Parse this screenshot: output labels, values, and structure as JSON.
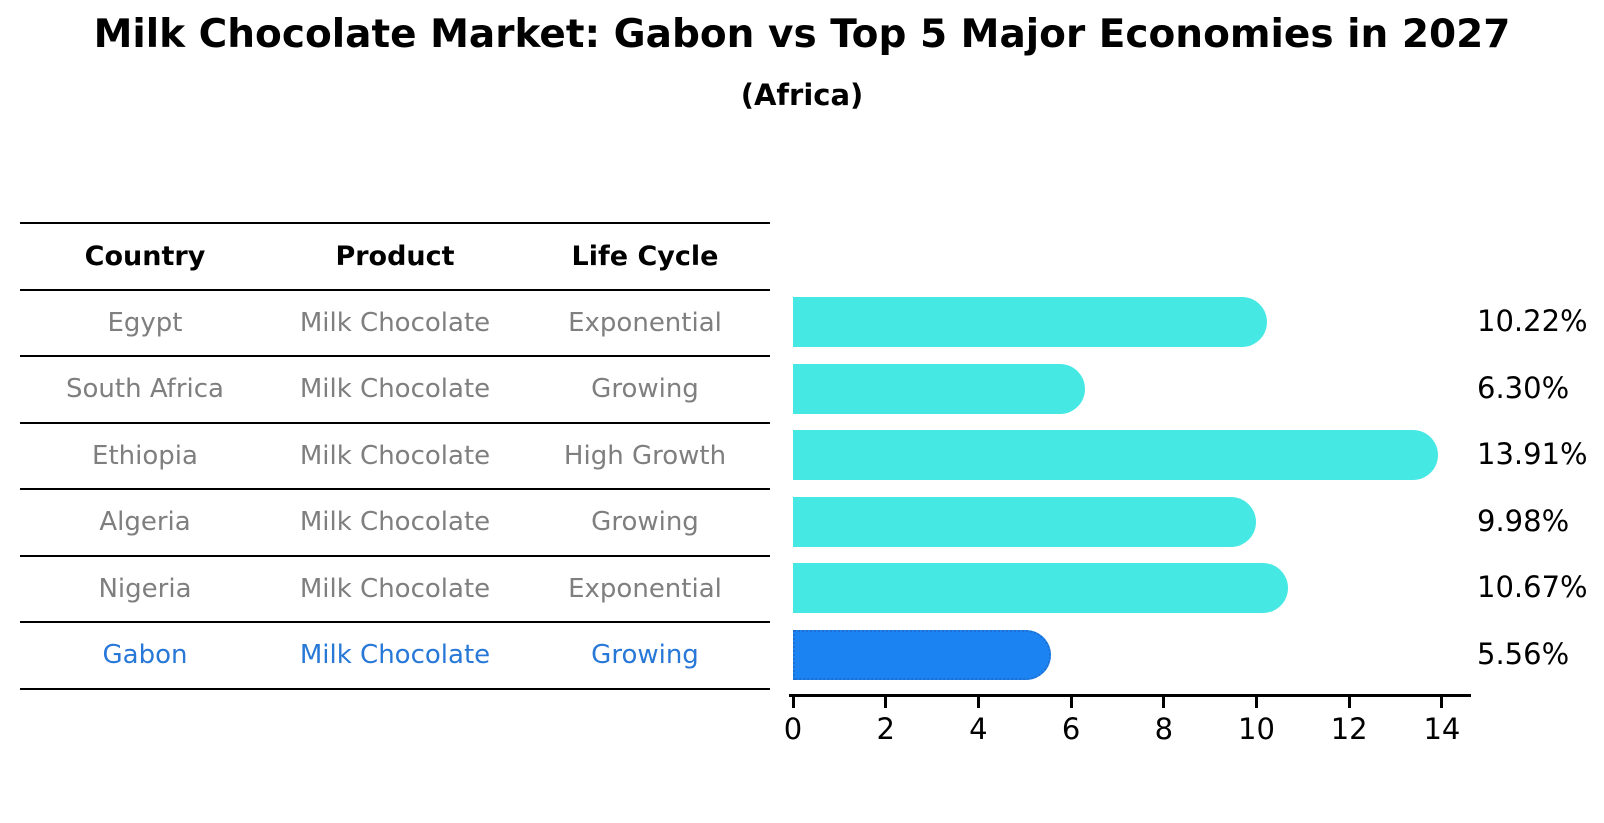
{
  "title": "Milk Chocolate Market: Gabon vs Top 5 Major Economies in 2027",
  "subtitle": "(Africa)",
  "table": {
    "headers": [
      "Country",
      "Product",
      "Life Cycle"
    ],
    "rows": [
      {
        "country": "Egypt",
        "product": "Milk Chocolate",
        "life_cycle": "Exponential",
        "highlight": false
      },
      {
        "country": "South Africa",
        "product": "Milk Chocolate",
        "life_cycle": "Growing",
        "highlight": false
      },
      {
        "country": "Ethiopia",
        "product": "Milk Chocolate",
        "life_cycle": "High Growth",
        "highlight": false
      },
      {
        "country": "Algeria",
        "product": "Milk Chocolate",
        "life_cycle": "Growing",
        "highlight": false
      },
      {
        "country": "Nigeria",
        "product": "Milk Chocolate",
        "life_cycle": "Exponential",
        "highlight": false
      },
      {
        "country": "Gabon",
        "product": "Milk Chocolate",
        "life_cycle": "Growing",
        "highlight": true
      }
    ]
  },
  "chart_data": {
    "type": "bar",
    "orientation": "horizontal",
    "title": "Milk Chocolate Market: Gabon vs Top 5 Major Economies in 2027",
    "subtitle": "(Africa)",
    "categories": [
      "Egypt",
      "South Africa",
      "Ethiopia",
      "Algeria",
      "Nigeria",
      "Gabon"
    ],
    "values": [
      10.22,
      6.3,
      13.91,
      9.98,
      10.67,
      5.56
    ],
    "value_labels": [
      "10.22%",
      "6.30%",
      "13.91%",
      "9.98%",
      "10.67%",
      "5.56%"
    ],
    "xlabel": "",
    "ylabel": "",
    "xlim": [
      0,
      14.6
    ],
    "xticks": [
      0,
      2,
      4,
      6,
      8,
      10,
      12,
      14
    ],
    "grid": false,
    "legend": false,
    "highlight_index": 5,
    "bar_color": "#46e8e4",
    "highlight_bar_color": "#1b84f2",
    "highlight_text_color": "#2878d8"
  },
  "colors": {
    "bar_cyan": "#46e8e4",
    "bar_blue": "#1b84f2",
    "highlight_blue_text": "#2878d8",
    "table_text_gray": "#7f7f7f",
    "axis_black": "#000000"
  }
}
